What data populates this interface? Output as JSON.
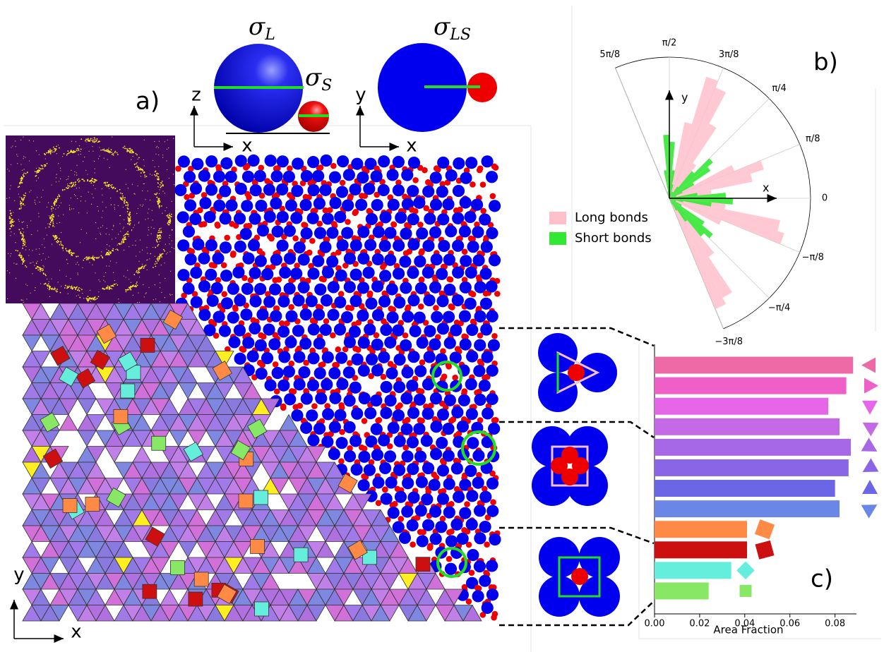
{
  "panel_labels": {
    "a": "a)",
    "b": "b)",
    "c": "c)"
  },
  "sphere_diagram": {
    "sigma_L": {
      "symbol": "σ",
      "subscript": "L"
    },
    "sigma_S": {
      "symbol": "σ",
      "subscript": "S"
    },
    "sigma_LS": {
      "symbol": "σ",
      "subscript": "LS"
    },
    "side_axes": {
      "vertical": "z",
      "horizontal": "x"
    },
    "top_axes": {
      "vertical": "y",
      "horizontal": "x"
    }
  },
  "tiling_axes": {
    "vertical": "y",
    "horizontal": "x"
  },
  "chart_data": [
    {
      "type": "polar_histogram",
      "bins": [
        -1.1781,
        -1.0799,
        -0.9817,
        -0.8836,
        -0.7854,
        -0.6872,
        -0.589,
        -0.4909,
        -0.3927,
        -0.2945,
        -0.1963,
        -0.0982,
        0,
        0.0982,
        0.1963,
        0.2945,
        0.3927,
        0.4909,
        0.589,
        0.6872,
        0.7854,
        0.8836,
        0.9817,
        1.0799,
        1.1781,
        1.2763,
        1.3744,
        1.4726,
        1.5708,
        1.669,
        1.7671,
        1.8653,
        1.9635
      ],
      "series": [
        {
          "name": "Long bonds",
          "color": "#ffc0cb",
          "values": [
            0.85,
            0.8,
            0.5,
            0.15,
            0.05,
            0.05,
            0.1,
            0.4,
            0.85,
            0.8,
            0.4,
            0.1,
            0.1,
            0.3,
            0.6,
            0.7,
            0.5,
            0.15,
            0.05,
            0.05,
            0.1,
            0.3,
            0.6,
            0.85,
            0.9,
            0.55,
            0.2,
            0.05,
            0.02,
            0.02,
            0,
            0
          ]
        },
        {
          "name": "Short bonds",
          "color": "#33e833",
          "values": [
            0.05,
            0.1,
            0.2,
            0.35,
            0.4,
            0.3,
            0.1,
            0.05,
            0.05,
            0.1,
            0.3,
            0.45,
            0.4,
            0.2,
            0.05,
            0.05,
            0.1,
            0.2,
            0.35,
            0.4,
            0.25,
            0.1,
            0.05,
            0.05,
            0.05,
            0.1,
            0.2,
            0.4,
            0.45,
            0.2,
            0.05,
            0
          ]
        }
      ],
      "thetalim": [
        -1.1781,
        1.9635
      ],
      "thetaticks": [
        {
          "value": -1.1781,
          "label": "−3π/8"
        },
        {
          "value": -0.7854,
          "label": "−π/4"
        },
        {
          "value": -0.3927,
          "label": "−π/8"
        },
        0,
        {
          "value": 0.3927,
          "label": "π/8"
        },
        {
          "value": 0.7854,
          "label": "π/4"
        },
        {
          "value": 1.1781,
          "label": "3π/8"
        },
        {
          "value": 1.5708,
          "label": "π/2"
        },
        {
          "value": 1.9635,
          "label": "5π/8"
        }
      ],
      "rlim": [
        0,
        1
      ],
      "axis_labels": {
        "x": "x",
        "y": "y"
      },
      "legend": "left"
    },
    {
      "type": "barh",
      "values": [
        0.088,
        0.085,
        0.077,
        0.082,
        0.087,
        0.086,
        0.08,
        0.082,
        0.041,
        0.041,
        0.034,
        0.024
      ],
      "colors": [
        "#ee6aa7",
        "#ee5fc8",
        "#e566e6",
        "#c56ae6",
        "#a668e6",
        "#8a66e6",
        "#6a66e6",
        "#6a86e6",
        "#ff8a45",
        "#cc1010",
        "#66eedd",
        "#88e866"
      ],
      "xlim": [
        0,
        0.0895
      ],
      "xticks": [
        {
          "value": 0,
          "label": "0.00"
        },
        0.02,
        0.04,
        0.06,
        0.08
      ],
      "xlabel": "Area Fraction"
    }
  ]
}
